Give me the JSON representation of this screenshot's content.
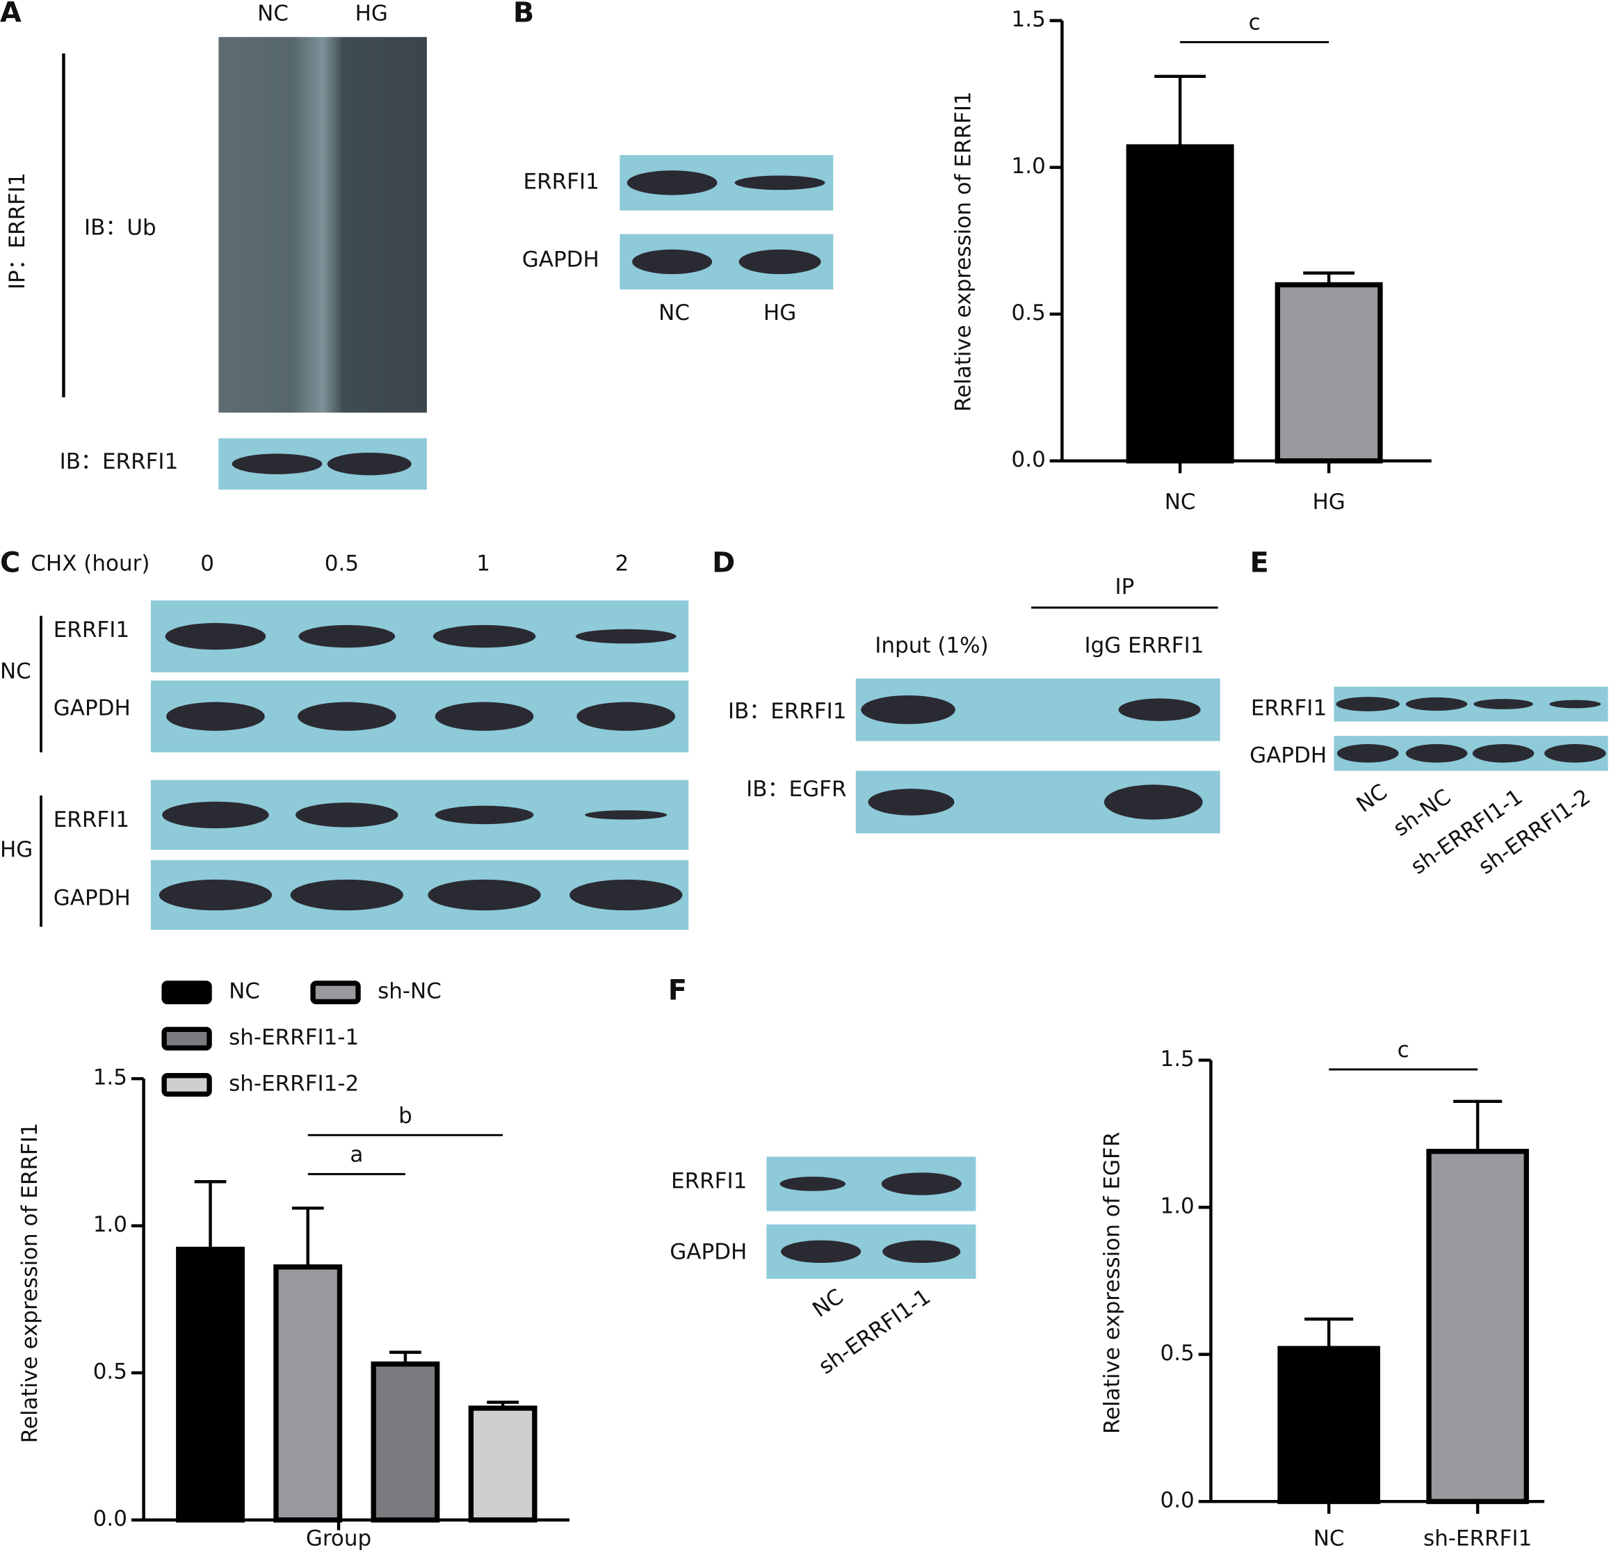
{
  "panels": {
    "A": {
      "label": "A",
      "lanes": [
        "NC",
        "HG"
      ],
      "ip": "IP：ERRFI1",
      "ib_ub": "IB：Ub",
      "ib": "IB：ERRFI1"
    },
    "B": {
      "label": "B",
      "rows": [
        "ERRFI1",
        "GAPDH"
      ],
      "lanes": [
        "NC",
        "HG"
      ]
    },
    "C": {
      "label": "C",
      "condition": "CHX (hour)",
      "times": [
        "0",
        "0.5",
        "1",
        "2"
      ],
      "groups": [
        "NC",
        "HG"
      ],
      "rows": [
        "ERRFI1",
        "GAPDH"
      ]
    },
    "D": {
      "label": "D",
      "ip": "IP",
      "lanes": [
        "Input (1%)",
        "IgG ERRFI1"
      ],
      "rows": [
        "IB：ERRFI1",
        "IB：EGFR"
      ]
    },
    "E": {
      "label": "E",
      "rows": [
        "ERRFI1",
        "GAPDH"
      ],
      "lanes": [
        "NC",
        "sh-NC",
        "sh-ERRFI1-1",
        "sh-ERRFI1-2"
      ]
    },
    "F": {
      "label": "F",
      "rows": [
        "ERRFI1",
        "GAPDH"
      ],
      "lanes": [
        "NC",
        "sh-ERRFI1-1"
      ]
    }
  },
  "chart_data": [
    {
      "type": "bar",
      "ylabel": "Relative expression of ERRFI1",
      "categories": [
        "NC",
        "HG"
      ],
      "values": [
        1.07,
        0.6
      ],
      "errors": [
        0.24,
        0.04
      ],
      "colors": [
        "#000000",
        "#9a9a9e"
      ],
      "ylim": [
        0,
        1.5
      ],
      "yticks": [
        {
          "value": 0,
          "label": "0.0"
        },
        0.5,
        {
          "value": 1,
          "label": "1.0"
        },
        1.5
      ],
      "annotations": [
        {
          "label": "c",
          "between": [
            0,
            1
          ]
        }
      ]
    },
    {
      "type": "bar",
      "ylabel": "Relative expression of ERRFI1",
      "xlabel": "Group",
      "categories": [
        "NC",
        "sh-NC",
        "sh-ERRFI1-1",
        "sh-ERRFI1-2"
      ],
      "values": [
        0.92,
        0.86,
        0.53,
        0.38
      ],
      "errors": [
        0.23,
        0.2,
        0.04,
        0.02
      ],
      "colors": [
        "#000000",
        "#9a9a9e",
        "#7b7b7f",
        "#cfcfd1"
      ],
      "legend": true,
      "ylim": [
        0,
        1.5
      ],
      "yticks": [
        {
          "value": 0,
          "label": "0.0"
        },
        0.5,
        {
          "value": 1,
          "label": "1.0"
        },
        1.5
      ],
      "annotations": [
        {
          "label": "a",
          "between": [
            1,
            2
          ]
        },
        {
          "label": "b",
          "between": [
            1,
            3
          ]
        }
      ]
    },
    {
      "type": "bar",
      "ylabel": "Relative expression of EGFR",
      "categories": [
        "NC",
        "sh-ERRFI1"
      ],
      "values": [
        0.52,
        1.19
      ],
      "errors": [
        0.1,
        0.17
      ],
      "colors": [
        "#000000",
        "#9a9a9e"
      ],
      "ylim": [
        0,
        1.5
      ],
      "yticks": [
        {
          "value": 0,
          "label": "0.0"
        },
        0.5,
        {
          "value": 1,
          "label": "1.0"
        },
        1.5
      ],
      "annotations": [
        {
          "label": "c",
          "between": [
            0,
            1
          ]
        }
      ]
    }
  ]
}
